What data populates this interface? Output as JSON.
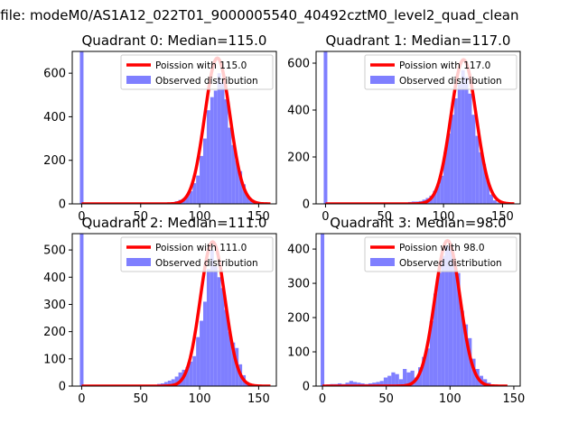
{
  "figure": {
    "suptitle": "n file: modeM0/AS1A12_022T01_9000005540_40492cztM0_level2_quad_clean"
  },
  "colors": {
    "hist": "#7f7fff",
    "line": "#ff0000",
    "axis": "#000000",
    "legend_border": "#cccccc"
  },
  "chart_data": [
    {
      "type": "histogram+line",
      "title": "Quadrant 0: Median=115.0",
      "xlim": [
        -8,
        165
      ],
      "ylim": [
        0,
        700
      ],
      "xticks": [
        0,
        50,
        100,
        150
      ],
      "yticks": [
        0,
        200,
        400,
        600
      ],
      "legend": {
        "placement": "upper-right",
        "entries": [
          "Poission with 115.0",
          "Observed distribution"
        ]
      },
      "zero_spike": 700,
      "bin_width": 3,
      "bins": [
        [
          70,
          5
        ],
        [
          73,
          6
        ],
        [
          76,
          8
        ],
        [
          79,
          12
        ],
        [
          82,
          18
        ],
        [
          85,
          25
        ],
        [
          88,
          38
        ],
        [
          91,
          58
        ],
        [
          94,
          95
        ],
        [
          97,
          130
        ],
        [
          100,
          220
        ],
        [
          103,
          300
        ],
        [
          106,
          430
        ],
        [
          109,
          490
        ],
        [
          112,
          520
        ],
        [
          115,
          600
        ],
        [
          118,
          560
        ],
        [
          121,
          480
        ],
        [
          124,
          350
        ],
        [
          127,
          270
        ],
        [
          130,
          200
        ],
        [
          133,
          150
        ],
        [
          136,
          90
        ],
        [
          139,
          40
        ],
        [
          142,
          15
        ],
        [
          145,
          6
        ],
        [
          148,
          3
        ]
      ],
      "curve": {
        "mean": 115,
        "peak": 670,
        "sigma": 10.7,
        "x": [
          0,
          160
        ]
      }
    },
    {
      "type": "histogram+line",
      "title": "Quadrant 1: Median=117.0",
      "xlim": [
        -8,
        165
      ],
      "ylim": [
        0,
        650
      ],
      "xticks": [
        0,
        50,
        100,
        150
      ],
      "yticks": [
        0,
        200,
        400,
        600
      ],
      "legend": {
        "placement": "upper-right",
        "entries": [
          "Poission with 117.0",
          "Observed distribution"
        ]
      },
      "zero_spike": 650,
      "bin_width": 3,
      "bins": [
        [
          70,
          8
        ],
        [
          73,
          10
        ],
        [
          76,
          10
        ],
        [
          79,
          12
        ],
        [
          82,
          18
        ],
        [
          85,
          25
        ],
        [
          88,
          35
        ],
        [
          91,
          55
        ],
        [
          94,
          80
        ],
        [
          97,
          120
        ],
        [
          100,
          220
        ],
        [
          103,
          300
        ],
        [
          106,
          380
        ],
        [
          109,
          450
        ],
        [
          112,
          510
        ],
        [
          115,
          570
        ],
        [
          118,
          540
        ],
        [
          121,
          470
        ],
        [
          124,
          380
        ],
        [
          127,
          290
        ],
        [
          130,
          220
        ],
        [
          133,
          170
        ],
        [
          136,
          100
        ],
        [
          139,
          40
        ],
        [
          142,
          15
        ],
        [
          145,
          6
        ],
        [
          148,
          3
        ]
      ],
      "curve": {
        "mean": 117,
        "peak": 615,
        "sigma": 10.8,
        "x": [
          0,
          160
        ]
      }
    },
    {
      "type": "histogram+line",
      "title": "Quadrant 2: Median=111.0",
      "xlim": [
        -8,
        165
      ],
      "ylim": [
        0,
        560
      ],
      "xticks": [
        0,
        50,
        100,
        150
      ],
      "yticks": [
        0,
        100,
        200,
        300,
        400,
        500
      ],
      "legend": {
        "placement": "upper-right",
        "entries": [
          "Poission with 111.0",
          "Observed distribution"
        ]
      },
      "zero_spike": 560,
      "bin_width": 3,
      "bins": [
        [
          61,
          5
        ],
        [
          64,
          8
        ],
        [
          67,
          10
        ],
        [
          70,
          15
        ],
        [
          73,
          20
        ],
        [
          76,
          25
        ],
        [
          79,
          35
        ],
        [
          82,
          50
        ],
        [
          85,
          60
        ],
        [
          88,
          70
        ],
        [
          91,
          90
        ],
        [
          94,
          110
        ],
        [
          97,
          180
        ],
        [
          100,
          240
        ],
        [
          103,
          310
        ],
        [
          106,
          430
        ],
        [
          109,
          500
        ],
        [
          112,
          440
        ],
        [
          115,
          400
        ],
        [
          118,
          360
        ],
        [
          121,
          280
        ],
        [
          124,
          200
        ],
        [
          127,
          160
        ],
        [
          130,
          140
        ],
        [
          133,
          80
        ],
        [
          136,
          40
        ],
        [
          139,
          15
        ],
        [
          142,
          5
        ]
      ],
      "curve": {
        "mean": 111,
        "peak": 530,
        "sigma": 10.5,
        "x": [
          0,
          160
        ]
      }
    },
    {
      "type": "histogram+line",
      "title": "Quadrant 3: Median=98.0",
      "xlim": [
        -5,
        155
      ],
      "ylim": [
        0,
        445
      ],
      "xticks": [
        0,
        50,
        100,
        150
      ],
      "yticks": [
        0,
        100,
        200,
        300,
        400
      ],
      "legend": {
        "placement": "upper-right",
        "entries": [
          "Poission with 98.0",
          "Observed distribution"
        ]
      },
      "zero_spike": 445,
      "bin_width": 3,
      "bins": [
        [
          3,
          5
        ],
        [
          6,
          6
        ],
        [
          9,
          6
        ],
        [
          12,
          8
        ],
        [
          15,
          6
        ],
        [
          18,
          10
        ],
        [
          21,
          15
        ],
        [
          24,
          12
        ],
        [
          27,
          10
        ],
        [
          30,
          8
        ],
        [
          33,
          6
        ],
        [
          36,
          8
        ],
        [
          39,
          10
        ],
        [
          42,
          12
        ],
        [
          45,
          15
        ],
        [
          48,
          25
        ],
        [
          51,
          30
        ],
        [
          54,
          40
        ],
        [
          57,
          35
        ],
        [
          60,
          20
        ],
        [
          63,
          50
        ],
        [
          66,
          40
        ],
        [
          69,
          45
        ],
        [
          72,
          25
        ],
        [
          75,
          55
        ],
        [
          78,
          85
        ],
        [
          81,
          110
        ],
        [
          84,
          190
        ],
        [
          87,
          270
        ],
        [
          90,
          330
        ],
        [
          93,
          380
        ],
        [
          96,
          410
        ],
        [
          99,
          400
        ],
        [
          102,
          360
        ],
        [
          105,
          330
        ],
        [
          108,
          220
        ],
        [
          111,
          180
        ],
        [
          114,
          140
        ],
        [
          117,
          80
        ],
        [
          120,
          50
        ],
        [
          123,
          30
        ],
        [
          126,
          20
        ],
        [
          129,
          10
        ],
        [
          132,
          5
        ]
      ],
      "curve": {
        "mean": 98,
        "peak": 425,
        "sigma": 9.9,
        "x": [
          0,
          145
        ]
      }
    }
  ]
}
